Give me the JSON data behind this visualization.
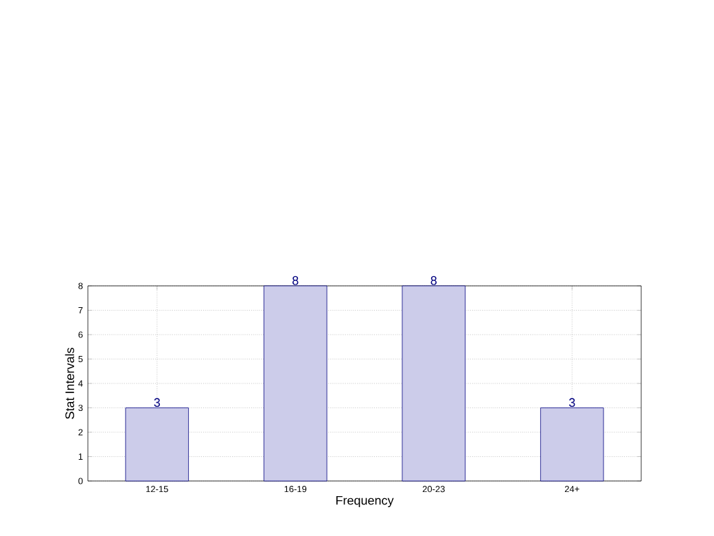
{
  "chart_data": {
    "type": "bar",
    "xlabel": "Frequency",
    "ylabel": "Stat Intervals",
    "categories": [
      "12-15",
      "16-19",
      "20-23",
      "24+"
    ],
    "values": [
      3,
      8,
      8,
      3
    ],
    "color": "#ccccea",
    "ylim": [
      0,
      8
    ],
    "yticks": [
      0,
      1,
      2,
      3,
      4,
      5,
      6,
      7,
      8
    ],
    "grid": true,
    "data_labels": true
  }
}
